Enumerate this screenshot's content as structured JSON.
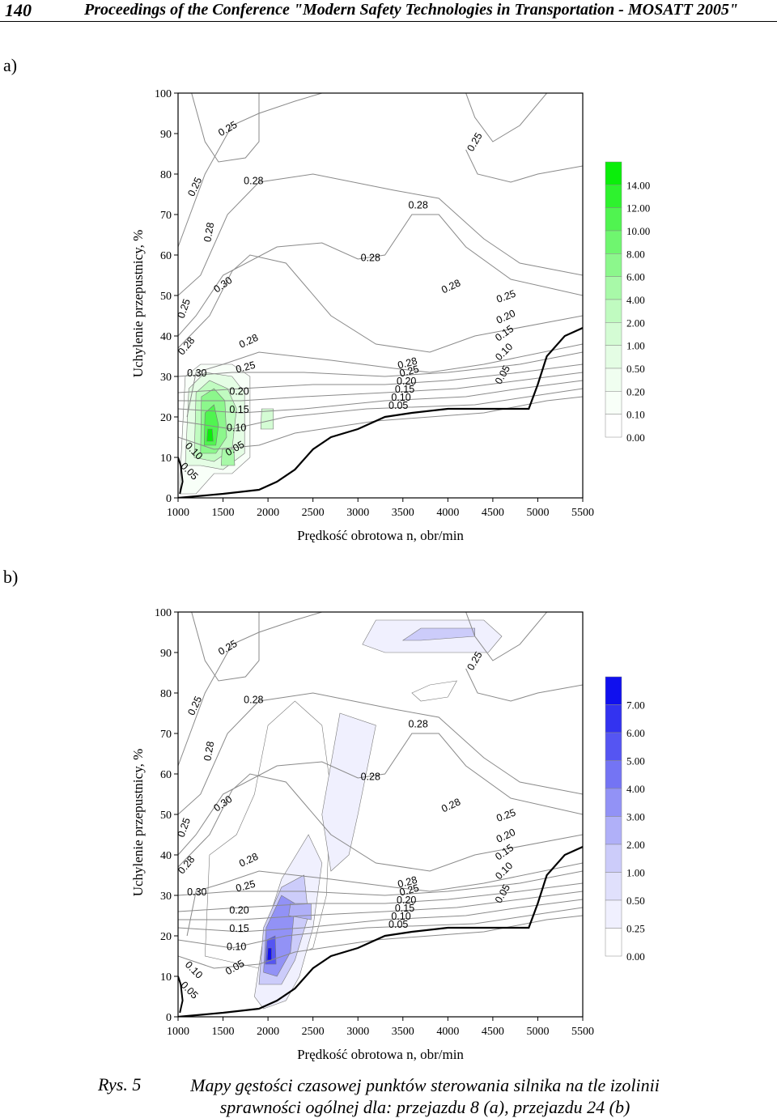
{
  "header": {
    "page_number": "140",
    "running_title": "Proceedings of the Conference \"Modern Safety Technologies in Transportation - MOSATT 2005\""
  },
  "panels": [
    {
      "label": "a)"
    },
    {
      "label": "b)"
    }
  ],
  "caption": {
    "label": "Rys. 5",
    "text": "Mapy gęstości czasowej punktów sterowania silnika na tle izolinii sprawności ogólnej dla: przejazdu 8 (a), przejazdu 24 (b)"
  },
  "chart_data": [
    {
      "type": "contour",
      "xlabel": "Prędkość obrotowa n, obr/min",
      "ylabel": "Uchylenie przepustnicy, %",
      "x_ticks": [
        "1000",
        "1500",
        "2000",
        "2500",
        "3000",
        "3500",
        "4000",
        "4500",
        "5000",
        "5500"
      ],
      "y_ticks": [
        "0",
        "10",
        "20",
        "30",
        "40",
        "50",
        "60",
        "70",
        "80",
        "90",
        "100"
      ],
      "xlim": [
        1000,
        5500
      ],
      "ylim": [
        0,
        100
      ],
      "fill_color": "#22cc22",
      "legend": {
        "levels": [
          "14.00",
          "12.00",
          "10.00",
          "8.00",
          "6.00",
          "4.00",
          "2.00",
          "1.00",
          "0.50",
          "0.20",
          "0.10",
          "0.00"
        ],
        "colors": [
          "#0aee0a",
          "#2ef22e",
          "#50f450",
          "#6ff66f",
          "#8cf78c",
          "#a8f9a8",
          "#c0fbc0",
          "#d4fcd4",
          "#e4fde4",
          "#f0fef0",
          "#f8fff8",
          "#ffffff"
        ]
      },
      "isoline_labels": [
        {
          "text": "0.25",
          "x": 1570,
          "y": 90.5,
          "angle": -30
        },
        {
          "text": "0.25",
          "x": 4330,
          "y": 87.5,
          "angle": -60
        },
        {
          "text": "0.25",
          "x": 1220,
          "y": 76.5,
          "angle": -65
        },
        {
          "text": "0.28",
          "x": 1840,
          "y": 77.5,
          "angle": 0
        },
        {
          "text": "0.28",
          "x": 1380,
          "y": 65.5,
          "angle": -80
        },
        {
          "text": "0.28",
          "x": 3670,
          "y": 71.5,
          "angle": 0
        },
        {
          "text": "0.28",
          "x": 3140,
          "y": 58.5,
          "angle": 0
        },
        {
          "text": "0.30",
          "x": 1520,
          "y": 52,
          "angle": -35
        },
        {
          "text": "0.25",
          "x": 1100,
          "y": 46.5,
          "angle": -70
        },
        {
          "text": "0.28",
          "x": 4050,
          "y": 51.5,
          "angle": -25
        },
        {
          "text": "0.28",
          "x": 1120,
          "y": 37,
          "angle": -50
        },
        {
          "text": "0.28",
          "x": 1800,
          "y": 38,
          "angle": -25
        },
        {
          "text": "0.30",
          "x": 1210,
          "y": 30,
          "angle": 0
        },
        {
          "text": "0.25",
          "x": 1760,
          "y": 31.5,
          "angle": -15
        },
        {
          "text": "0.20",
          "x": 1680,
          "y": 25.5,
          "angle": 0
        },
        {
          "text": "0.15",
          "x": 1680,
          "y": 21,
          "angle": 0
        },
        {
          "text": "0.10",
          "x": 1650,
          "y": 16.5,
          "angle": 0
        },
        {
          "text": "0.05",
          "x": 1650,
          "y": 11.5,
          "angle": -30
        },
        {
          "text": "0.10",
          "x": 1150,
          "y": 11,
          "angle": 45
        },
        {
          "text": "0.05",
          "x": 1100,
          "y": 6,
          "angle": 45
        },
        {
          "text": "0.28",
          "x": 3560,
          "y": 32.5,
          "angle": -15
        },
        {
          "text": "0.25",
          "x": 3580,
          "y": 30.5,
          "angle": -15
        },
        {
          "text": "0.20",
          "x": 3540,
          "y": 28,
          "angle": 0
        },
        {
          "text": "0.15",
          "x": 3520,
          "y": 26,
          "angle": 0
        },
        {
          "text": "0.10",
          "x": 3480,
          "y": 24,
          "angle": 0
        },
        {
          "text": "0.05",
          "x": 3450,
          "y": 22,
          "angle": 0
        },
        {
          "text": "0.25",
          "x": 4660,
          "y": 49,
          "angle": -20
        },
        {
          "text": "0.20",
          "x": 4660,
          "y": 44,
          "angle": -25
        },
        {
          "text": "0.15",
          "x": 4650,
          "y": 40,
          "angle": -35
        },
        {
          "text": "0.10",
          "x": 4650,
          "y": 35.5,
          "angle": -45
        },
        {
          "text": "0.05",
          "x": 4640,
          "y": 30,
          "angle": -60
        }
      ],
      "density_peaks": [
        {
          "x": 1350,
          "y": 15,
          "level": 14
        },
        {
          "x": 1550,
          "y": 10,
          "level": 6
        },
        {
          "x": 1500,
          "y": 20,
          "level": 4
        }
      ]
    },
    {
      "type": "contour",
      "xlabel": "Prędkość obrotowa n, obr/min",
      "ylabel": "Uchylenie przepustnicy, %",
      "x_ticks": [
        "1000",
        "1500",
        "2000",
        "2500",
        "3000",
        "3500",
        "4000",
        "4500",
        "5000",
        "5500"
      ],
      "y_ticks": [
        "0",
        "10",
        "20",
        "30",
        "40",
        "50",
        "60",
        "70",
        "80",
        "90",
        "100"
      ],
      "xlim": [
        1000,
        5500
      ],
      "ylim": [
        0,
        100
      ],
      "fill_color": "#2a2aee",
      "legend": {
        "levels": [
          "7.00",
          "6.00",
          "5.00",
          "4.00",
          "3.00",
          "2.00",
          "1.00",
          "0.50",
          "0.25",
          "0.00"
        ],
        "colors": [
          "#1010ee",
          "#3333f0",
          "#5555f2",
          "#7474f4",
          "#9292f6",
          "#b0b0f8",
          "#ccccfa",
          "#e0e0fc",
          "#f0f0fe",
          "#ffffff"
        ]
      },
      "isoline_labels": [
        {
          "text": "0.25",
          "x": 1570,
          "y": 90.5,
          "angle": -30
        },
        {
          "text": "0.25",
          "x": 4330,
          "y": 87.5,
          "angle": -60
        },
        {
          "text": "0.25",
          "x": 1220,
          "y": 76.5,
          "angle": -65
        },
        {
          "text": "0.28",
          "x": 1840,
          "y": 77.5,
          "angle": 0
        },
        {
          "text": "0.28",
          "x": 1380,
          "y": 65.5,
          "angle": -80
        },
        {
          "text": "0.28",
          "x": 3670,
          "y": 71.5,
          "angle": 0
        },
        {
          "text": "0.28",
          "x": 3140,
          "y": 58.5,
          "angle": 0
        },
        {
          "text": "0.30",
          "x": 1520,
          "y": 52,
          "angle": -35
        },
        {
          "text": "0.25",
          "x": 1100,
          "y": 46.5,
          "angle": -70
        },
        {
          "text": "0.28",
          "x": 4050,
          "y": 51.5,
          "angle": -25
        },
        {
          "text": "0.28",
          "x": 1120,
          "y": 37,
          "angle": -50
        },
        {
          "text": "0.28",
          "x": 1800,
          "y": 38,
          "angle": -25
        },
        {
          "text": "0.30",
          "x": 1210,
          "y": 30,
          "angle": 0
        },
        {
          "text": "0.25",
          "x": 1760,
          "y": 31.5,
          "angle": -15
        },
        {
          "text": "0.20",
          "x": 1680,
          "y": 25.5,
          "angle": 0
        },
        {
          "text": "0.15",
          "x": 1680,
          "y": 21,
          "angle": 0
        },
        {
          "text": "0.10",
          "x": 1650,
          "y": 16.5,
          "angle": 0
        },
        {
          "text": "0.05",
          "x": 1650,
          "y": 11.5,
          "angle": -30
        },
        {
          "text": "0.10",
          "x": 1150,
          "y": 11,
          "angle": 45
        },
        {
          "text": "0.05",
          "x": 1100,
          "y": 6,
          "angle": 45
        },
        {
          "text": "0.28",
          "x": 3560,
          "y": 32.5,
          "angle": -15
        },
        {
          "text": "0.25",
          "x": 3580,
          "y": 30.5,
          "angle": -15
        },
        {
          "text": "0.20",
          "x": 3540,
          "y": 28,
          "angle": 0
        },
        {
          "text": "0.15",
          "x": 3520,
          "y": 26,
          "angle": 0
        },
        {
          "text": "0.10",
          "x": 3480,
          "y": 24,
          "angle": 0
        },
        {
          "text": "0.05",
          "x": 3450,
          "y": 22,
          "angle": 0
        },
        {
          "text": "0.25",
          "x": 4660,
          "y": 49,
          "angle": -20
        },
        {
          "text": "0.20",
          "x": 4660,
          "y": 44,
          "angle": -25
        },
        {
          "text": "0.15",
          "x": 4650,
          "y": 40,
          "angle": -35
        },
        {
          "text": "0.10",
          "x": 4650,
          "y": 35.5,
          "angle": -45
        },
        {
          "text": "0.05",
          "x": 4640,
          "y": 30,
          "angle": -60
        }
      ],
      "density_peaks": [
        {
          "x": 2000,
          "y": 15.5,
          "level": 7
        },
        {
          "x": 2350,
          "y": 26,
          "level": 3
        },
        {
          "x": 3950,
          "y": 95,
          "level": 1
        }
      ]
    }
  ]
}
